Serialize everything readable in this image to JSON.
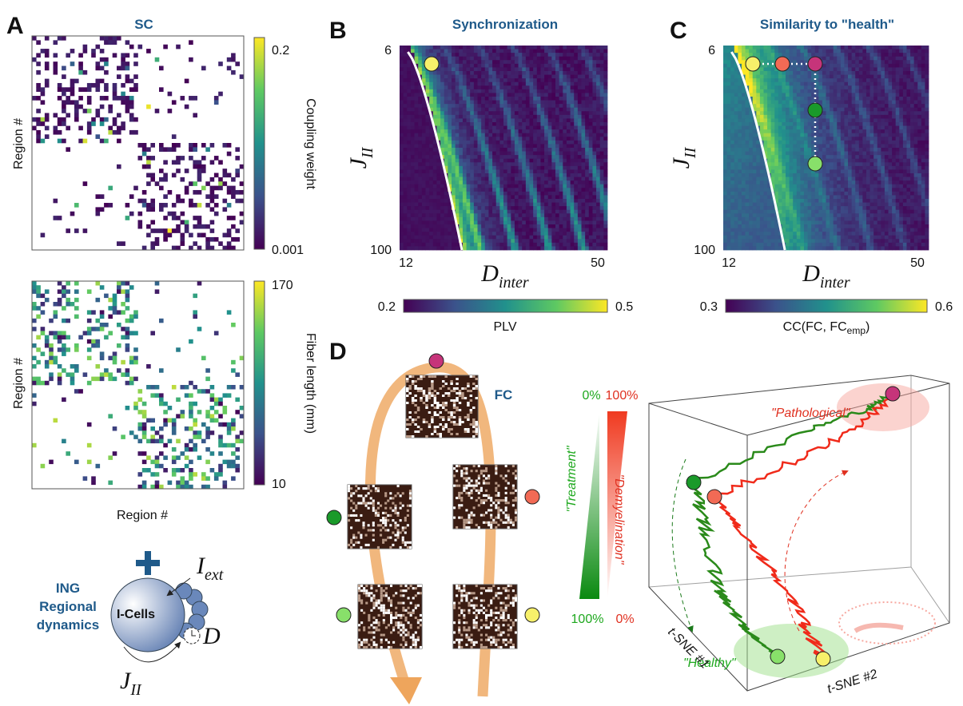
{
  "A": {
    "label": "A",
    "title": "SC",
    "sc_ylabel": "Region #",
    "sc_cbar_label": "Coupling weight",
    "sc_cbar_ticks": [
      0.2,
      0.001
    ],
    "len_ylabel": "Region #",
    "len_cbar_label": "Fiber length (mm)",
    "len_cbar_ticks": [
      170,
      10
    ],
    "xlabel": "Region #",
    "model_title": [
      "ING",
      "Regional",
      "dynamics"
    ],
    "cell_label": "I-Cells",
    "input": {
      "symbol": "I",
      "sub": "ext"
    },
    "delay": "D",
    "coupling": {
      "symbol": "J",
      "sub": "II"
    }
  },
  "B": {
    "label": "B",
    "title": "Synchronization",
    "yticks": [
      6,
      100
    ],
    "xticks": [
      12,
      50
    ],
    "ylabel": {
      "symbol": "J",
      "sub": "II"
    },
    "xlabel": {
      "symbol": "D",
      "sub": "inter"
    },
    "cbar_ticks": [
      0.2,
      0.5
    ],
    "cbar_label": "PLV"
  },
  "C": {
    "label": "C",
    "title": "Similarity to \"health\"",
    "yticks": [
      6,
      100
    ],
    "xticks": [
      12,
      50
    ],
    "ylabel": {
      "symbol": "J",
      "sub": "II"
    },
    "xlabel": {
      "symbol": "D",
      "sub": "inter"
    },
    "cbar_ticks": [
      0.3,
      0.6
    ],
    "cbar_label": {
      "text": "CC(FC, FC",
      "sub": "emp",
      "close": ")"
    }
  },
  "D": {
    "label": "D",
    "fc_label": "FC",
    "percent_top": [
      "0%",
      "100%"
    ],
    "percent_bottom": [
      "100%",
      "0%"
    ],
    "treatment": "\"Treatment\"",
    "demyelination": "\"Demyelination\"",
    "pathological": "\"Pathological\"",
    "healthy": "\"Healthy\"",
    "axis1": "t-SNE #1",
    "axis2": "t-SNE #2"
  }
}
